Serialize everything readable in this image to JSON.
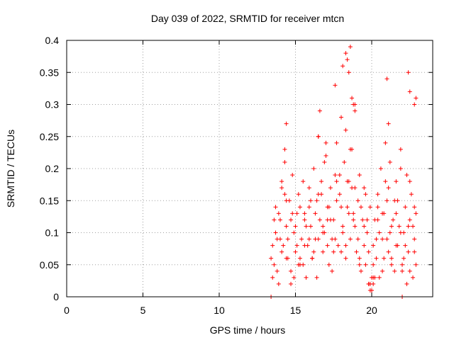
{
  "chart_data": {
    "type": "scatter",
    "title": "Day 039 of 2022, SRMTID for receiver mtcn",
    "xlabel": "GPS time / hours",
    "ylabel": "SRMTID / TECUs",
    "xlim": [
      0,
      24
    ],
    "ylim": [
      0,
      0.4
    ],
    "x_ticks": [
      "0",
      "5",
      "10",
      "15",
      "20"
    ],
    "y_ticks": [
      "0",
      "0.05",
      "0.1",
      "0.15",
      "0.2",
      "0.25",
      "0.3",
      "0.35",
      "0.4"
    ],
    "grid": true,
    "legend": "none",
    "marker_color": "#ff0000",
    "series": [
      {
        "marker": "plus",
        "x": [
          13.4,
          13.6,
          13.7,
          13.8,
          13.9,
          14.0,
          14.1,
          14.2,
          14.3,
          14.4,
          14.5,
          14.6,
          14.7,
          14.8,
          14.9,
          15.0,
          15.1,
          15.2,
          15.3,
          15.4,
          15.5,
          15.6,
          15.7,
          15.8,
          15.9,
          16.0,
          16.1,
          16.2,
          16.3,
          16.4,
          16.5,
          16.6,
          16.7,
          16.8,
          16.9,
          17.0,
          17.1,
          17.2,
          17.3,
          17.4,
          17.5,
          17.6,
          17.7,
          17.8,
          17.9,
          18.0,
          18.1,
          18.2,
          18.3,
          18.4,
          18.5,
          18.6,
          18.7,
          18.8,
          18.9,
          19.0,
          19.1,
          19.2,
          19.3,
          19.4,
          19.5,
          19.6,
          19.7,
          19.8,
          19.9,
          20.0,
          20.1,
          20.2,
          20.3,
          20.4,
          20.5,
          20.6,
          20.7,
          20.8,
          20.9,
          21.0,
          21.1,
          21.2,
          21.3,
          21.4,
          21.5,
          21.6,
          21.7,
          21.8,
          21.9,
          22.0,
          22.1,
          22.2,
          22.3,
          22.4,
          22.5,
          22.6,
          22.7,
          22.8,
          22.9,
          13.5,
          13.7,
          13.9,
          14.1,
          14.3,
          14.5,
          14.7,
          14.9,
          15.1,
          15.3,
          15.5,
          15.7,
          15.9,
          16.1,
          16.3,
          16.5,
          16.7,
          16.9,
          17.1,
          17.3,
          17.5,
          17.7,
          17.9,
          18.1,
          18.3,
          18.5,
          18.7,
          18.9,
          19.1,
          19.3,
          19.5,
          19.7,
          19.9,
          20.1,
          20.3,
          20.5,
          20.7,
          20.9,
          21.1,
          21.3,
          21.5,
          21.7,
          21.9,
          22.1,
          22.3,
          22.5,
          22.7,
          22.9,
          13.5,
          13.8,
          14.1,
          14.4,
          14.7,
          15.0,
          15.3,
          15.6,
          15.9,
          16.2,
          16.5,
          16.8,
          17.1,
          17.4,
          17.7,
          18.0,
          18.3,
          18.6,
          18.9,
          19.2,
          19.5,
          19.8,
          20.1,
          20.4,
          20.7,
          21.0,
          21.3,
          21.6,
          21.9,
          22.2,
          22.5,
          22.8,
          13.6,
          14.0,
          14.4,
          14.8,
          15.2,
          15.6,
          16.0,
          16.4,
          16.8,
          17.2,
          17.6,
          18.0,
          18.4,
          18.8,
          19.2,
          19.6,
          20.0,
          20.4,
          20.8,
          21.2,
          21.6,
          22.0,
          22.4,
          22.8,
          14.3,
          14.4,
          16.6,
          17.6,
          18.1,
          18.3,
          18.5,
          18.7,
          18.8,
          21.0,
          21.1,
          22.4,
          22.5,
          22.8,
          22.9,
          18.4,
          18.6,
          18.9,
          16.5,
          17.0,
          19.8,
          20.0,
          20.2,
          19.9,
          20.1,
          13.4,
          22.0
        ],
        "y": [
          0.06,
          0.05,
          0.14,
          0.09,
          0.02,
          0.12,
          0.17,
          0.08,
          0.21,
          0.11,
          0.06,
          0.15,
          0.04,
          0.19,
          0.1,
          0.07,
          0.13,
          0.16,
          0.05,
          0.09,
          0.18,
          0.12,
          0.03,
          0.08,
          0.14,
          0.11,
          0.06,
          0.2,
          0.09,
          0.15,
          0.25,
          0.12,
          0.18,
          0.07,
          0.1,
          0.22,
          0.14,
          0.05,
          0.17,
          0.09,
          0.12,
          0.19,
          0.24,
          0.08,
          0.16,
          0.28,
          0.11,
          0.21,
          0.06,
          0.14,
          0.18,
          0.09,
          0.23,
          0.13,
          0.3,
          0.07,
          0.15,
          0.19,
          0.04,
          0.12,
          0.17,
          0.05,
          0.1,
          0.02,
          0.14,
          0.03,
          0.08,
          0.12,
          0.06,
          0.16,
          0.1,
          0.2,
          0.04,
          0.13,
          0.24,
          0.09,
          0.17,
          0.21,
          0.06,
          0.12,
          0.15,
          0.18,
          0.08,
          0.11,
          0.23,
          0.05,
          0.1,
          0.14,
          0.19,
          0.07,
          0.12,
          0.16,
          0.03,
          0.09,
          0.13,
          0.03,
          0.1,
          0.13,
          0.07,
          0.16,
          0.09,
          0.12,
          0.03,
          0.08,
          0.14,
          0.05,
          0.11,
          0.17,
          0.06,
          0.13,
          0.09,
          0.16,
          0.21,
          0.08,
          0.12,
          0.07,
          0.15,
          0.19,
          0.1,
          0.26,
          0.13,
          0.17,
          0.11,
          0.09,
          0.14,
          0.08,
          0.12,
          0.01,
          0.05,
          0.09,
          0.03,
          0.13,
          0.18,
          0.07,
          0.11,
          0.04,
          0.15,
          0.1,
          0.06,
          0.02,
          0.18,
          0.11,
          0.05,
          0.08,
          0.04,
          0.18,
          0.15,
          0.02,
          0.11,
          0.06,
          0.13,
          0.09,
          0.07,
          0.16,
          0.1,
          0.12,
          0.04,
          0.18,
          0.14,
          0.08,
          0.23,
          0.17,
          0.06,
          0.11,
          0.07,
          0.02,
          0.12,
          0.09,
          0.15,
          0.05,
          0.13,
          0.2,
          0.08,
          0.04,
          0.14,
          0.12,
          0.09,
          0.06,
          0.13,
          0.05,
          0.08,
          0.15,
          0.03,
          0.11,
          0.14,
          0.09,
          0.07,
          0.18,
          0.12,
          0.05,
          0.16,
          0.01,
          0.14,
          0.06,
          0.1,
          0.08,
          0.04,
          0.11,
          0.07,
          0.23,
          0.27,
          0.29,
          0.33,
          0.36,
          0.38,
          0.35,
          0.31,
          0.3,
          0.34,
          0.27,
          0.35,
          0.32,
          0.3,
          0.31,
          0.37,
          0.39,
          0.29,
          0.25,
          0.24,
          0.02,
          0.01,
          0.03,
          0.02,
          0.03,
          0.0,
          0.0
        ]
      }
    ]
  }
}
